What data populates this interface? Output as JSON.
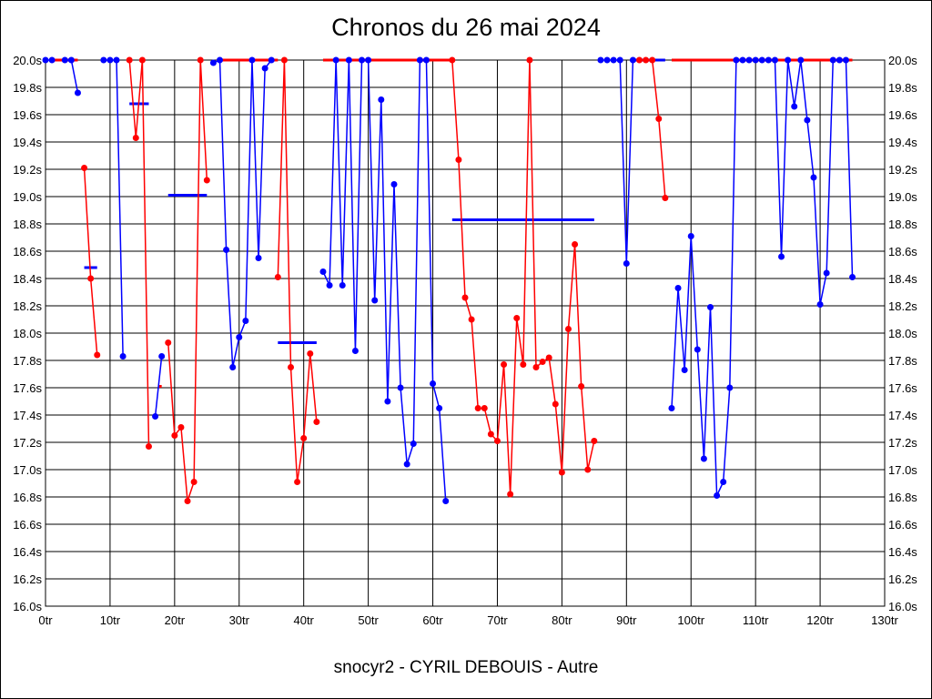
{
  "chart_data": {
    "type": "line",
    "title": "Chronos du 26 mai 2024",
    "footer": "snocyr2 - CYRIL DEBOUIS - Autre",
    "xlabel": "",
    "ylabel": "",
    "xlim": [
      0,
      130
    ],
    "ylim": [
      16.0,
      20.0
    ],
    "x_ticks": [
      "0tr",
      "10tr",
      "20tr",
      "30tr",
      "40tr",
      "50tr",
      "60tr",
      "70tr",
      "80tr",
      "90tr",
      "100tr",
      "110tr",
      "120tr",
      "130tr"
    ],
    "y_ticks": [
      "16.0s",
      "16.2s",
      "16.4s",
      "16.6s",
      "16.8s",
      "17.0s",
      "17.2s",
      "17.4s",
      "17.6s",
      "17.8s",
      "18.0s",
      "18.2s",
      "18.4s",
      "18.6s",
      "18.8s",
      "19.0s",
      "19.2s",
      "19.4s",
      "19.6s",
      "19.8s",
      "20.0s"
    ],
    "grid": true,
    "colors": {
      "blue": "#0000ff",
      "red": "#ff0000"
    },
    "runs": [
      {
        "series": "blue",
        "laps": [
          0,
          1
        ],
        "values": [
          20.0,
          20.0
        ]
      },
      {
        "series": "blue",
        "laps": [
          3,
          4,
          5
        ],
        "values": [
          20.0,
          20.0,
          19.76
        ]
      },
      {
        "series": "red",
        "laps": [
          6,
          7,
          8
        ],
        "values": [
          19.21,
          18.4,
          17.84
        ]
      },
      {
        "series": "blue",
        "laps": [
          9,
          10,
          11,
          12
        ],
        "values": [
          20.0,
          20.0,
          20.0,
          17.83
        ]
      },
      {
        "series": "red",
        "laps": [
          13,
          14,
          15,
          16
        ],
        "values": [
          20.0,
          19.43,
          20.0,
          17.17
        ]
      },
      {
        "series": "blue",
        "laps": [
          17,
          18
        ],
        "values": [
          17.39,
          17.83
        ]
      },
      {
        "series": "red",
        "laps": [
          19,
          20,
          21,
          22,
          23,
          24,
          25
        ],
        "values": [
          17.93,
          17.25,
          17.31,
          16.77,
          16.91,
          20.0,
          19.12
        ]
      },
      {
        "series": "blue",
        "laps": [
          26,
          27,
          28,
          29,
          30,
          31,
          32,
          33,
          34,
          35
        ],
        "values": [
          19.98,
          20.0,
          18.61,
          17.75,
          17.97,
          18.09,
          20.0,
          18.55,
          19.94,
          20.0
        ]
      },
      {
        "series": "red",
        "laps": [
          36,
          37,
          38,
          39,
          40,
          41,
          42
        ],
        "values": [
          18.41,
          20.0,
          17.75,
          16.91,
          17.23,
          17.85,
          17.35
        ]
      },
      {
        "series": "blue",
        "laps": [
          43,
          44,
          45,
          46,
          47,
          48,
          49,
          50,
          51,
          52,
          53,
          54,
          55,
          56,
          57,
          58,
          59,
          60,
          61,
          62
        ],
        "values": [
          18.45,
          18.35,
          20.0,
          18.35,
          20.0,
          17.87,
          20.0,
          20.0,
          18.24,
          19.71,
          17.5,
          19.09,
          17.6,
          17.04,
          17.19,
          20.0,
          20.0,
          17.63,
          17.45,
          16.77
        ]
      },
      {
        "series": "red",
        "laps": [
          63,
          64,
          65,
          66,
          67,
          68,
          69,
          70,
          71,
          72,
          73,
          74,
          75,
          76,
          77,
          78,
          79,
          80,
          81,
          82,
          83,
          84,
          85
        ],
        "values": [
          20.0,
          19.27,
          18.26,
          18.1,
          17.45,
          17.45,
          17.26,
          17.21,
          17.77,
          16.82,
          18.11,
          17.77,
          20.0,
          17.75,
          17.79,
          17.82,
          17.48,
          16.98,
          18.03,
          18.65,
          17.61,
          17.0,
          17.21
        ]
      },
      {
        "series": "blue",
        "laps": [
          86,
          87,
          88,
          89,
          90,
          91
        ],
        "values": [
          20.0,
          20.0,
          20.0,
          20.0,
          18.51,
          20.0
        ]
      },
      {
        "series": "red",
        "laps": [
          92,
          93,
          94,
          95,
          96
        ],
        "values": [
          20.0,
          20.0,
          20.0,
          19.57,
          18.99
        ]
      },
      {
        "series": "blue",
        "laps": [
          97,
          98,
          99,
          100,
          101,
          102,
          103,
          104,
          105,
          106,
          107,
          108,
          109,
          110,
          111,
          112,
          113,
          114,
          115,
          116,
          117,
          118,
          119,
          120,
          121,
          122,
          123,
          124,
          125
        ],
        "values": [
          17.45,
          18.33,
          17.73,
          18.71,
          17.88,
          17.08,
          18.19,
          16.81,
          16.91,
          17.6,
          20.0,
          20.0,
          20.0,
          20.0,
          20.0,
          20.0,
          20.0,
          18.56,
          20.0,
          19.66,
          20.0,
          19.56,
          19.14,
          18.21,
          18.44,
          20.0,
          20.0,
          20.0,
          18.41
        ]
      }
    ],
    "average_marks": [
      {
        "series": "blue",
        "from": 6,
        "to": 8,
        "value": 18.48
      },
      {
        "series": "blue",
        "from": 13,
        "to": 16,
        "value": 19.68
      },
      {
        "series": "red",
        "from": 17.5,
        "to": 18,
        "value": 17.61
      },
      {
        "series": "blue",
        "from": 19,
        "to": 25,
        "value": 19.01
      },
      {
        "series": "blue",
        "from": 36,
        "to": 42,
        "value": 17.93
      },
      {
        "series": "blue",
        "from": 63,
        "to": 85,
        "value": 18.83
      }
    ],
    "top_segments": [
      {
        "series": "red",
        "from": 1,
        "to": 5
      },
      {
        "series": "red",
        "from": 27,
        "to": 36
      },
      {
        "series": "red",
        "from": 43,
        "to": 63
      },
      {
        "series": "blue",
        "from": 91,
        "to": 96
      },
      {
        "series": "red",
        "from": 97,
        "to": 125
      }
    ]
  }
}
